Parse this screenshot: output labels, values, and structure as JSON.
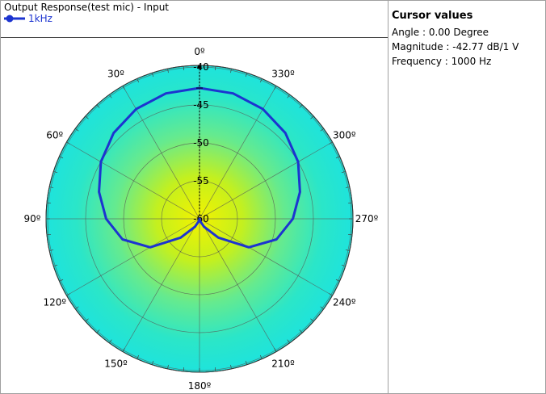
{
  "chart_data": {
    "type": "polar",
    "title": "Output Response(test mic) - Input",
    "legend": [
      {
        "name": "1kHz",
        "color": "#1c34d0"
      }
    ],
    "r_axis": {
      "min": -60,
      "max": -40,
      "ticks": [
        -40,
        -45,
        -50,
        -55,
        -60
      ]
    },
    "angle_axis": {
      "direction": "counterclockwise",
      "zero": "top",
      "tick_labels": [
        "0º",
        "30º",
        "60º",
        "90º",
        "120º",
        "150º",
        "180º",
        "210º",
        "240º",
        "270º",
        "300º",
        "330º"
      ]
    },
    "series": [
      {
        "name": "1kHz",
        "color": "#1c34d0",
        "points": [
          {
            "angle": 0,
            "magnitude": -42.77
          },
          {
            "angle": 15,
            "magnitude": -42.9
          },
          {
            "angle": 30,
            "magnitude": -43.3
          },
          {
            "angle": 45,
            "magnitude": -44.0
          },
          {
            "angle": 60,
            "magnitude": -45.0
          },
          {
            "angle": 75,
            "magnitude": -46.3
          },
          {
            "angle": 90,
            "magnitude": -47.7
          },
          {
            "angle": 105,
            "magnitude": -49.5
          },
          {
            "angle": 120,
            "magnitude": -52.5
          },
          {
            "angle": 135,
            "magnitude": -56.5
          },
          {
            "angle": 150,
            "magnitude": -58.8
          },
          {
            "angle": 165,
            "magnitude": -59.7
          },
          {
            "angle": 180,
            "magnitude": -60.0
          },
          {
            "angle": 195,
            "magnitude": -59.7
          },
          {
            "angle": 210,
            "magnitude": -58.8
          },
          {
            "angle": 225,
            "magnitude": -56.5
          },
          {
            "angle": 240,
            "magnitude": -52.5
          },
          {
            "angle": 255,
            "magnitude": -49.5
          },
          {
            "angle": 270,
            "magnitude": -47.7
          },
          {
            "angle": 285,
            "magnitude": -46.3
          },
          {
            "angle": 300,
            "magnitude": -45.0
          },
          {
            "angle": 315,
            "magnitude": -44.0
          },
          {
            "angle": 330,
            "magnitude": -43.3
          },
          {
            "angle": 345,
            "magnitude": -42.9
          }
        ]
      }
    ],
    "cursor": {
      "angle": 0,
      "magnitude": -42.77
    },
    "grid": true
  },
  "cursor_panel": {
    "title": "Cursor values",
    "angle": "Angle :  0.00 Degree",
    "magnitude": "Magnitude : -42.77 dB/1 V",
    "frequency": "Frequency : 1000 Hz"
  }
}
